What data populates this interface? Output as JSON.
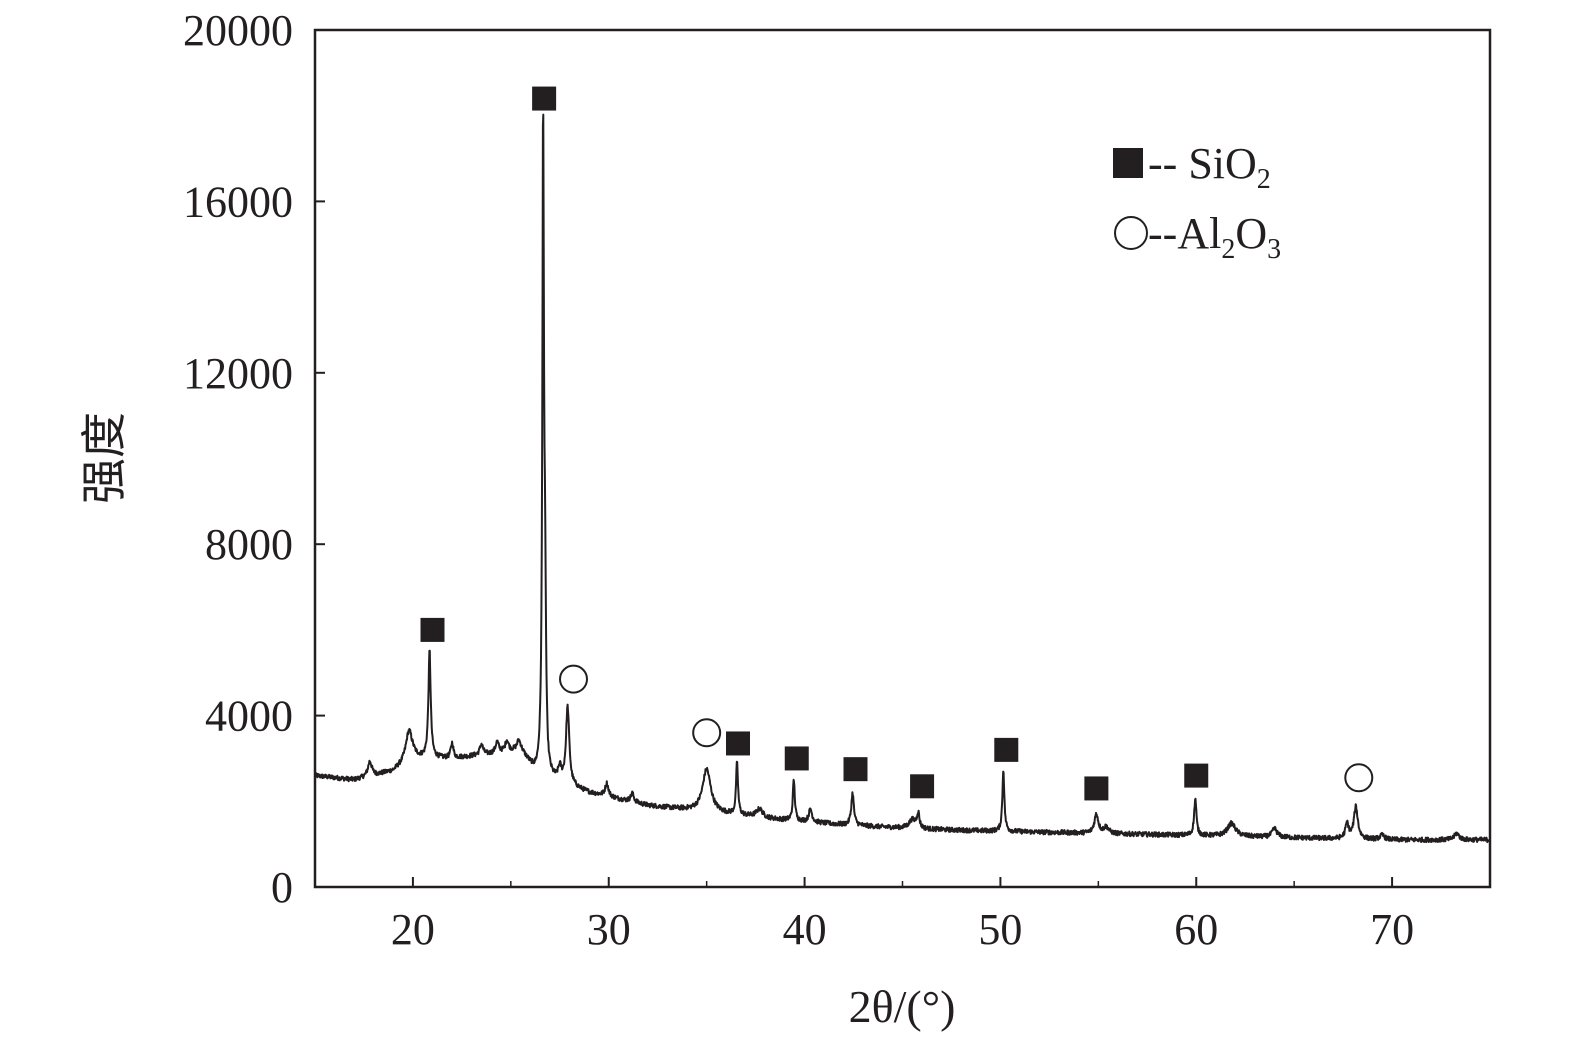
{
  "chart_data": {
    "type": "line",
    "xlabel": "2θ/(°)",
    "ylabel": "强度",
    "xlim": [
      15,
      75
    ],
    "ylim": [
      0,
      20000
    ],
    "x_ticks": [
      "20",
      "30",
      "40",
      "50",
      "60",
      "70"
    ],
    "y_ticks": [
      "0",
      "4000",
      "8000",
      "12000",
      "16000",
      "20000"
    ],
    "grid": false,
    "legend_position": "top-right",
    "legend": [
      {
        "marker": "filled-square",
        "prefix": "-- ",
        "formula": [
          {
            "t": "Si"
          },
          {
            "t": "O"
          },
          {
            "t": "2",
            "sub": true
          }
        ]
      },
      {
        "marker": "open-circle",
        "prefix": "--",
        "formula": [
          {
            "t": "Al"
          },
          {
            "t": "2",
            "sub": true
          },
          {
            "t": "O"
          },
          {
            "t": "3",
            "sub": true
          }
        ]
      }
    ],
    "series": [
      {
        "color": "#231f20",
        "baseline": [
          [
            15,
            2600
          ],
          [
            17,
            2500
          ],
          [
            19,
            2700
          ],
          [
            20,
            3000
          ],
          [
            22,
            3000
          ],
          [
            24,
            3100
          ],
          [
            25.5,
            3200
          ],
          [
            26.2,
            2700
          ],
          [
            27,
            2500
          ],
          [
            29,
            2200
          ],
          [
            32,
            1900
          ],
          [
            34,
            1800
          ],
          [
            38,
            1600
          ],
          [
            42,
            1450
          ],
          [
            46,
            1350
          ],
          [
            50,
            1300
          ],
          [
            55,
            1250
          ],
          [
            60,
            1200
          ],
          [
            65,
            1150
          ],
          [
            70,
            1100
          ],
          [
            75,
            1100
          ]
        ],
        "peaks": [
          {
            "x": 17.8,
            "h": 350,
            "w": 0.12
          },
          {
            "x": 19.8,
            "h": 700,
            "w": 0.2
          },
          {
            "x": 20.85,
            "h": 2500,
            "w": 0.07
          },
          {
            "x": 22.0,
            "h": 350,
            "w": 0.08
          },
          {
            "x": 23.5,
            "h": 250,
            "w": 0.1
          },
          {
            "x": 24.3,
            "h": 250,
            "w": 0.1
          },
          {
            "x": 24.8,
            "h": 250,
            "w": 0.1
          },
          {
            "x": 25.4,
            "h": 200,
            "w": 0.1
          },
          {
            "x": 26.65,
            "h": 15200,
            "w": 0.05
          },
          {
            "x": 26.75,
            "h": 3500,
            "w": 0.05
          },
          {
            "x": 27.5,
            "h": 300,
            "w": 0.1
          },
          {
            "x": 27.9,
            "h": 1800,
            "w": 0.1
          },
          {
            "x": 29.9,
            "h": 300,
            "w": 0.1
          },
          {
            "x": 31.2,
            "h": 200,
            "w": 0.1
          },
          {
            "x": 35.0,
            "h": 1000,
            "w": 0.25
          },
          {
            "x": 36.55,
            "h": 1200,
            "w": 0.06
          },
          {
            "x": 37.7,
            "h": 200,
            "w": 0.2
          },
          {
            "x": 39.45,
            "h": 950,
            "w": 0.06
          },
          {
            "x": 40.3,
            "h": 300,
            "w": 0.1
          },
          {
            "x": 42.45,
            "h": 750,
            "w": 0.08
          },
          {
            "x": 45.5,
            "h": 200,
            "w": 0.2
          },
          {
            "x": 45.8,
            "h": 350,
            "w": 0.08
          },
          {
            "x": 50.15,
            "h": 1450,
            "w": 0.06
          },
          {
            "x": 54.9,
            "h": 450,
            "w": 0.12
          },
          {
            "x": 55.4,
            "h": 150,
            "w": 0.15
          },
          {
            "x": 59.95,
            "h": 850,
            "w": 0.07
          },
          {
            "x": 61.8,
            "h": 300,
            "w": 0.25
          },
          {
            "x": 64.0,
            "h": 200,
            "w": 0.15
          },
          {
            "x": 67.7,
            "h": 350,
            "w": 0.1
          },
          {
            "x": 68.15,
            "h": 750,
            "w": 0.12
          },
          {
            "x": 69.5,
            "h": 100,
            "w": 0.15
          },
          {
            "x": 73.3,
            "h": 150,
            "w": 0.15
          }
        ]
      }
    ],
    "markers": [
      {
        "type": "square",
        "x": 21.0,
        "y": 6000
      },
      {
        "type": "square",
        "x": 26.7,
        "y": 18400
      },
      {
        "type": "circle",
        "x": 28.2,
        "y": 4850
      },
      {
        "type": "circle",
        "x": 35.0,
        "y": 3600
      },
      {
        "type": "square",
        "x": 36.6,
        "y": 3350
      },
      {
        "type": "square",
        "x": 39.6,
        "y": 3000
      },
      {
        "type": "square",
        "x": 42.6,
        "y": 2750
      },
      {
        "type": "square",
        "x": 46.0,
        "y": 2350
      },
      {
        "type": "square",
        "x": 50.3,
        "y": 3200
      },
      {
        "type": "square",
        "x": 54.9,
        "y": 2300
      },
      {
        "type": "square",
        "x": 60.0,
        "y": 2600
      },
      {
        "type": "circle",
        "x": 68.3,
        "y": 2550
      }
    ]
  }
}
